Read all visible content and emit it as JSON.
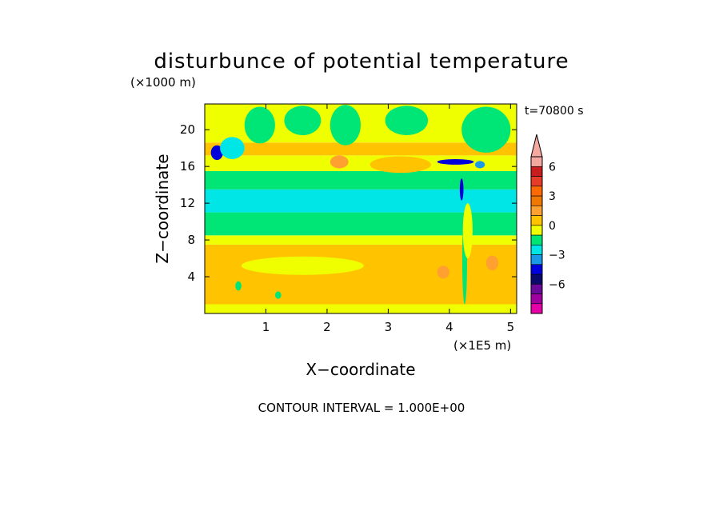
{
  "chart_data": {
    "type": "heatmap",
    "title": "disturbunce of potential temperature",
    "time_label": "t=70800 s",
    "xlabel": "X−coordinate",
    "ylabel": "Z−coordinate",
    "x_unit": "(×1E5 m)",
    "y_unit": "(×1000 m)",
    "xlim": [
      0.0,
      5.1
    ],
    "ylim": [
      0.0,
      22.8
    ],
    "x_ticks": [
      "1",
      "2",
      "3",
      "4",
      "5"
    ],
    "x_tick_values": [
      1,
      2,
      3,
      4,
      5
    ],
    "y_ticks": [
      "4",
      "8",
      "12",
      "16",
      "20"
    ],
    "y_tick_values": [
      4,
      8,
      12,
      16,
      20
    ],
    "footer": "CONTOUR INTERVAL = 1.000E+00",
    "colorbar": {
      "labels": [
        "6",
        "3",
        "0",
        "−3",
        "−6"
      ],
      "label_levels": [
        6,
        3,
        0,
        -3,
        -6
      ],
      "levels": [
        -8,
        -7,
        -6,
        -5,
        -4,
        -3,
        -2,
        -1,
        0,
        1,
        2,
        3,
        4,
        5,
        6,
        7
      ],
      "colors": [
        "#e600a8",
        "#a000a0",
        "#6a0a9a",
        "#0a0a6e",
        "#0000dc",
        "#1a9ae6",
        "#00e6e6",
        "#00e676",
        "#f0ff00",
        "#ffc300",
        "#ffa030",
        "#f07800",
        "#ff6a00",
        "#e63c28",
        "#c81e1e",
        "#f5a8a0"
      ],
      "extend_top_color": "#f5a8a0",
      "extend_bottom_color": "#e600a8"
    },
    "bands": [
      {
        "z": [
          0.0,
          1.0
        ],
        "level": 0
      },
      {
        "z": [
          1.0,
          7.5
        ],
        "level": 1
      },
      {
        "z": [
          7.5,
          8.5
        ],
        "level": 0
      },
      {
        "z": [
          8.5,
          11.0
        ],
        "level": -1
      },
      {
        "z": [
          11.0,
          13.5
        ],
        "level": -2
      },
      {
        "z": [
          13.5,
          15.5
        ],
        "level": -1
      },
      {
        "z": [
          15.5,
          17.2
        ],
        "level": 0
      },
      {
        "z": [
          17.2,
          18.6
        ],
        "level": 1
      },
      {
        "z": [
          18.6,
          22.8
        ],
        "level": 0
      }
    ],
    "features": [
      {
        "x": 0.2,
        "z": 17.5,
        "rx": 0.1,
        "rz": 0.8,
        "level": -4
      },
      {
        "x": 0.45,
        "z": 18.0,
        "rx": 0.2,
        "rz": 1.2,
        "level": -2
      },
      {
        "x": 0.9,
        "z": 20.5,
        "rx": 0.25,
        "rz": 2.0,
        "level": -1
      },
      {
        "x": 1.6,
        "z": 21.0,
        "rx": 0.3,
        "rz": 1.6,
        "level": -1
      },
      {
        "x": 2.3,
        "z": 20.5,
        "rx": 0.25,
        "rz": 2.2,
        "level": -1
      },
      {
        "x": 3.3,
        "z": 21.0,
        "rx": 0.35,
        "rz": 1.6,
        "level": -1
      },
      {
        "x": 4.6,
        "z": 20.0,
        "rx": 0.4,
        "rz": 2.5,
        "level": -1
      },
      {
        "x": 2.2,
        "z": 16.5,
        "rx": 0.15,
        "rz": 0.7,
        "level": 2
      },
      {
        "x": 3.2,
        "z": 16.2,
        "rx": 0.5,
        "rz": 0.9,
        "level": 1
      },
      {
        "x": 1.6,
        "z": 5.2,
        "rx": 1.0,
        "rz": 1.0,
        "level": 0
      },
      {
        "x": 3.9,
        "z": 4.5,
        "rx": 0.1,
        "rz": 0.7,
        "level": 2
      },
      {
        "x": 4.7,
        "z": 5.5,
        "rx": 0.1,
        "rz": 0.8,
        "level": 2
      },
      {
        "x": 4.1,
        "z": 16.5,
        "rx": 0.3,
        "rz": 0.3,
        "level": -4
      },
      {
        "x": 4.2,
        "z": 13.5,
        "rx": 0.03,
        "rz": 1.2,
        "level": -4
      },
      {
        "x": 4.5,
        "z": 16.2,
        "rx": 0.08,
        "rz": 0.4,
        "level": -3
      },
      {
        "x": 4.25,
        "z": 6.0,
        "rx": 0.04,
        "rz": 5.0,
        "level": -1
      },
      {
        "x": 4.3,
        "z": 9.0,
        "rx": 0.08,
        "rz": 3.0,
        "level": 0
      },
      {
        "x": 0.55,
        "z": 3.0,
        "rx": 0.05,
        "rz": 0.5,
        "level": -1
      },
      {
        "x": 1.2,
        "z": 2.0,
        "rx": 0.05,
        "rz": 0.4,
        "level": -1
      }
    ]
  }
}
